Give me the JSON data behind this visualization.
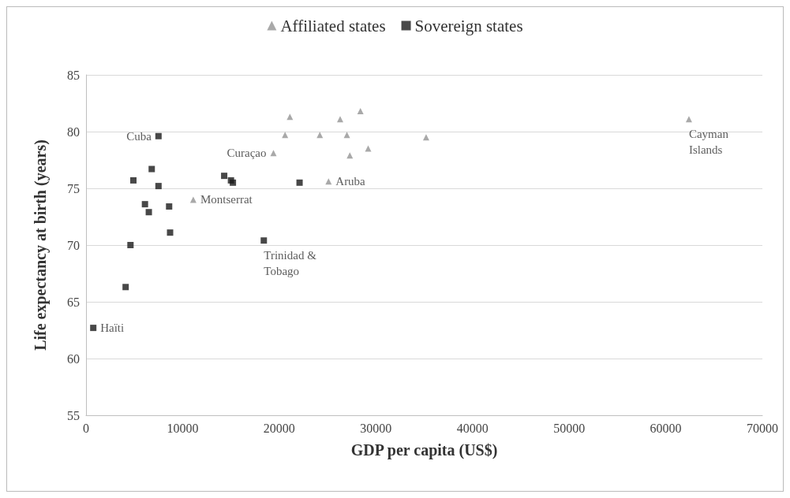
{
  "chart_data": {
    "type": "scatter",
    "xlabel": "GDP per capita (US$)",
    "ylabel": "Life expectancy at birth (years)",
    "xlim": [
      0,
      70000
    ],
    "xticks": [
      0,
      10000,
      20000,
      30000,
      40000,
      50000,
      60000,
      70000
    ],
    "ylim": [
      55,
      85
    ],
    "yticks": [
      55,
      60,
      65,
      70,
      75,
      80,
      85
    ],
    "grid": "y",
    "legend": "top",
    "series": [
      {
        "name": "Affiliated states",
        "color": "#939393",
        "marker": "triangle",
        "x": [
          21100,
          20600,
          19400,
          24200,
          26300,
          27000,
          28400,
          27300,
          29200,
          35200,
          25100,
          11100,
          62400
        ],
        "values": [
          81.3,
          79.7,
          78.1,
          79.7,
          81.1,
          79.7,
          81.8,
          77.9,
          78.5,
          79.5,
          75.6,
          74.0,
          81.1
        ]
      },
      {
        "name": "Sovereign states",
        "color": "#1a1a1a",
        "marker": "square",
        "x": [
          7500,
          6800,
          4900,
          7500,
          14300,
          15000,
          15200,
          22100,
          6100,
          6500,
          8600,
          8700,
          4600,
          18400,
          4100,
          750
        ],
        "values": [
          79.6,
          76.7,
          75.7,
          75.2,
          76.1,
          75.7,
          75.5,
          75.5,
          73.6,
          72.9,
          73.4,
          71.1,
          70.0,
          70.4,
          66.3,
          62.7
        ]
      }
    ],
    "annotations": [
      {
        "text": "Cuba",
        "x": 7500,
        "y": 79.6
      },
      {
        "text": "Curaçao",
        "x": 19400,
        "y": 78.1
      },
      {
        "text": "Montserrat",
        "x": 11100,
        "y": 74.0
      },
      {
        "text": "Aruba",
        "x": 25100,
        "y": 75.6
      },
      {
        "text": "Trinidad & Tobago",
        "x": 18400,
        "y": 70.4
      },
      {
        "text": "Haïti",
        "x": 750,
        "y": 62.7
      },
      {
        "text": "Cayman Islands",
        "x": 62400,
        "y": 81.1
      }
    ]
  }
}
